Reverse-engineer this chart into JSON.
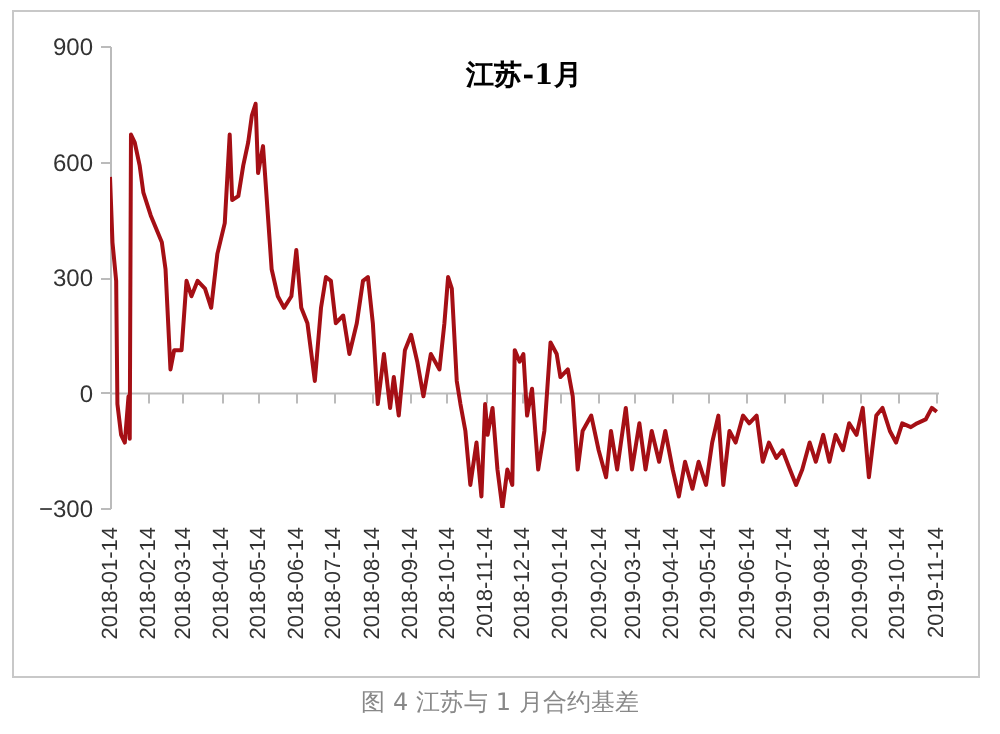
{
  "chart_data": {
    "type": "line",
    "title": "江苏-1月",
    "annotations": [
      "图 4 江苏与 1 月合约基差"
    ],
    "xlim": [
      "2018-01-14",
      "2019-11-16"
    ],
    "xticks": [
      "2018-01-14",
      "2018-02-14",
      "2018-03-14",
      "2018-04-14",
      "2018-05-14",
      "2018-06-14",
      "2018-07-14",
      "2018-08-14",
      "2018-09-14",
      "2018-10-14",
      "2018-11-14",
      "2018-12-14",
      "2019-01-14",
      "2019-02-14",
      "2019-03-14",
      "2019-04-14",
      "2019-05-14",
      "2019-06-14",
      "2019-07-14",
      "2019-08-14",
      "2019-09-14",
      "2019-10-14",
      "2019-11-14"
    ],
    "ylim": [
      -300,
      900
    ],
    "yticks": [
      -300,
      0,
      300,
      600,
      900
    ],
    "x": [
      "2018-01-14",
      "2018-01-16",
      "2018-01-19",
      "2018-01-20",
      "2018-01-23",
      "2018-01-26",
      "2018-01-29",
      "2018-01-30",
      "2018-01-31",
      "2018-02-03",
      "2018-02-07",
      "2018-02-10",
      "2018-02-16",
      "2018-02-25",
      "2018-02-28",
      "2018-03-04",
      "2018-03-07",
      "2018-03-13",
      "2018-03-17",
      "2018-03-21",
      "2018-03-26",
      "2018-04-01",
      "2018-04-06",
      "2018-04-11",
      "2018-04-17",
      "2018-04-21",
      "2018-04-23",
      "2018-04-28",
      "2018-05-02",
      "2018-05-06",
      "2018-05-09",
      "2018-05-12",
      "2018-05-14",
      "2018-05-18",
      "2018-05-20",
      "2018-05-25",
      "2018-05-30",
      "2018-06-04",
      "2018-06-10",
      "2018-06-14",
      "2018-06-18",
      "2018-06-23",
      "2018-06-29",
      "2018-07-04",
      "2018-07-08",
      "2018-07-12",
      "2018-07-16",
      "2018-07-22",
      "2018-07-27",
      "2018-08-02",
      "2018-08-07",
      "2018-08-11",
      "2018-08-15",
      "2018-08-19",
      "2018-08-24",
      "2018-08-29",
      "2018-09-01",
      "2018-09-05",
      "2018-09-10",
      "2018-09-15",
      "2018-09-20",
      "2018-09-25",
      "2018-10-01",
      "2018-10-08",
      "2018-10-12",
      "2018-10-15",
      "2018-10-18",
      "2018-10-22",
      "2018-10-25",
      "2018-10-29",
      "2018-11-02",
      "2018-11-07",
      "2018-11-11",
      "2018-11-14",
      "2018-11-16",
      "2018-11-20",
      "2018-11-24",
      "2018-11-28",
      "2018-12-02",
      "2018-12-06",
      "2018-12-08",
      "2018-12-12",
      "2018-12-15",
      "2018-12-18",
      "2018-12-22",
      "2018-12-27",
      "2019-01-01",
      "2019-01-06",
      "2019-01-11",
      "2019-01-14",
      "2019-01-20",
      "2019-01-24",
      "2019-01-28",
      "2019-02-01",
      "2019-02-08",
      "2019-02-14",
      "2019-02-20",
      "2019-02-24",
      "2019-03-01",
      "2019-03-08",
      "2019-03-13",
      "2019-03-19",
      "2019-03-24",
      "2019-03-29",
      "2019-04-04",
      "2019-04-09",
      "2019-04-15",
      "2019-04-20",
      "2019-04-25",
      "2019-05-01",
      "2019-05-06",
      "2019-05-12",
      "2019-05-17",
      "2019-05-22",
      "2019-05-26",
      "2019-05-31",
      "2019-06-05",
      "2019-06-11",
      "2019-06-16",
      "2019-06-22",
      "2019-06-27",
      "2019-07-02",
      "2019-07-08",
      "2019-07-13",
      "2019-07-19",
      "2019-07-24",
      "2019-07-29",
      "2019-08-04",
      "2019-08-09",
      "2019-08-15",
      "2019-08-20",
      "2019-08-25",
      "2019-08-31",
      "2019-09-05",
      "2019-09-11",
      "2019-09-16",
      "2019-09-21",
      "2019-09-27",
      "2019-10-02",
      "2019-10-08",
      "2019-10-13",
      "2019-10-18",
      "2019-10-25",
      "2019-10-30",
      "2019-11-06",
      "2019-11-11",
      "2019-11-15"
    ],
    "series": [
      {
        "color": "#a50f15",
        "values": [
          560,
          390,
          290,
          -30,
          -110,
          -130,
          -10,
          -120,
          670,
          650,
          590,
          520,
          460,
          390,
          320,
          60,
          110,
          110,
          290,
          250,
          290,
          270,
          220,
          360,
          440,
          670,
          500,
          510,
          590,
          650,
          720,
          750,
          570,
          640,
          550,
          320,
          250,
          220,
          250,
          370,
          220,
          180,
          30,
          220,
          300,
          290,
          180,
          200,
          100,
          180,
          290,
          300,
          180,
          -30,
          100,
          -40,
          40,
          -60,
          110,
          150,
          80,
          -10,
          100,
          60,
          180,
          300,
          270,
          30,
          -30,
          -100,
          -240,
          -130,
          -270,
          -30,
          -110,
          -40,
          -200,
          -300,
          -200,
          -240,
          110,
          80,
          100,
          -60,
          10,
          -200,
          -100,
          130,
          100,
          40,
          60,
          -10,
          -200,
          -100,
          -60,
          -150,
          -220,
          -100,
          -200,
          -40,
          -200,
          -80,
          -200,
          -100,
          -180,
          -100,
          -200,
          -270,
          -180,
          -250,
          -180,
          -240,
          -130,
          -60,
          -240,
          -100,
          -130,
          -60,
          -80,
          -60,
          -180,
          -130,
          -170,
          -150,
          -200,
          -240,
          -200,
          -130,
          -180,
          -110,
          -180,
          -110,
          -150,
          -80,
          -110,
          -40,
          -220,
          -60,
          -40,
          -100,
          -130,
          -80,
          -90,
          -80,
          -70,
          -40,
          -50
        ]
      }
    ]
  }
}
